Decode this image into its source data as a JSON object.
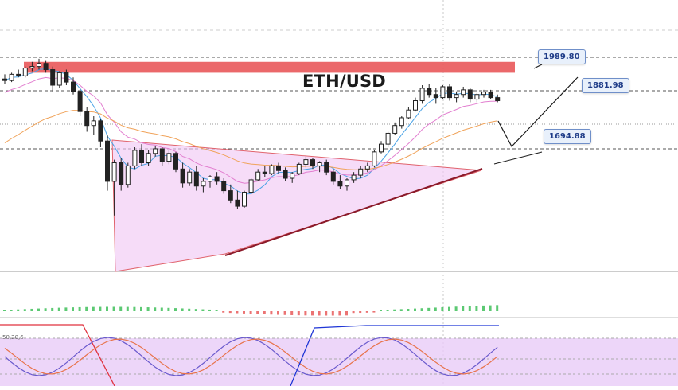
{
  "chart_data": {
    "type": "candlestick",
    "title": "ETH/USD",
    "symbol": "ETH/USD",
    "price_levels": [
      {
        "label": "1989.80",
        "value": 1989.8
      },
      {
        "label": "1881.98",
        "value": 1881.98
      },
      {
        "label": "1694.88",
        "value": 1694.88
      }
    ],
    "resistance_zone": [
      1940,
      1975
    ],
    "pattern": "triangle",
    "candles_ohlc": [
      [
        1920,
        1935,
        1905,
        1915
      ],
      [
        1915,
        1940,
        1910,
        1935
      ],
      [
        1935,
        1950,
        1925,
        1930
      ],
      [
        1930,
        1960,
        1925,
        1955
      ],
      [
        1955,
        1975,
        1945,
        1960
      ],
      [
        1960,
        1985,
        1950,
        1970
      ],
      [
        1970,
        1978,
        1940,
        1950
      ],
      [
        1950,
        1960,
        1880,
        1900
      ],
      [
        1900,
        1945,
        1890,
        1940
      ],
      [
        1940,
        1950,
        1900,
        1910
      ],
      [
        1910,
        1925,
        1870,
        1880
      ],
      [
        1880,
        1890,
        1800,
        1815
      ],
      [
        1815,
        1830,
        1750,
        1770
      ],
      [
        1770,
        1800,
        1740,
        1785
      ],
      [
        1785,
        1790,
        1700,
        1720
      ],
      [
        1720,
        1740,
        1560,
        1590
      ],
      [
        1590,
        1660,
        1480,
        1650
      ],
      [
        1650,
        1665,
        1560,
        1580
      ],
      [
        1580,
        1650,
        1570,
        1640
      ],
      [
        1640,
        1700,
        1630,
        1690
      ],
      [
        1690,
        1710,
        1640,
        1650
      ],
      [
        1650,
        1690,
        1640,
        1680
      ],
      [
        1680,
        1705,
        1670,
        1695
      ],
      [
        1695,
        1700,
        1640,
        1655
      ],
      [
        1655,
        1690,
        1645,
        1680
      ],
      [
        1680,
        1685,
        1620,
        1630
      ],
      [
        1630,
        1650,
        1570,
        1585
      ],
      [
        1585,
        1630,
        1575,
        1620
      ],
      [
        1620,
        1640,
        1560,
        1575
      ],
      [
        1575,
        1600,
        1555,
        1590
      ],
      [
        1590,
        1610,
        1570,
        1605
      ],
      [
        1605,
        1620,
        1580,
        1590
      ],
      [
        1590,
        1600,
        1550,
        1560
      ],
      [
        1560,
        1580,
        1520,
        1530
      ],
      [
        1530,
        1560,
        1500,
        1510
      ],
      [
        1510,
        1560,
        1505,
        1555
      ],
      [
        1555,
        1600,
        1550,
        1595
      ],
      [
        1595,
        1630,
        1590,
        1620
      ],
      [
        1620,
        1640,
        1605,
        1615
      ],
      [
        1615,
        1645,
        1610,
        1640
      ],
      [
        1640,
        1650,
        1615,
        1625
      ],
      [
        1625,
        1635,
        1590,
        1600
      ],
      [
        1600,
        1620,
        1585,
        1615
      ],
      [
        1615,
        1650,
        1610,
        1645
      ],
      [
        1645,
        1670,
        1635,
        1660
      ],
      [
        1660,
        1665,
        1630,
        1640
      ],
      [
        1640,
        1655,
        1620,
        1650
      ],
      [
        1650,
        1660,
        1610,
        1620
      ],
      [
        1620,
        1630,
        1580,
        1590
      ],
      [
        1590,
        1610,
        1565,
        1575
      ],
      [
        1575,
        1600,
        1560,
        1595
      ],
      [
        1595,
        1620,
        1585,
        1610
      ],
      [
        1610,
        1640,
        1600,
        1630
      ],
      [
        1630,
        1650,
        1620,
        1640
      ],
      [
        1640,
        1690,
        1635,
        1685
      ],
      [
        1685,
        1720,
        1680,
        1710
      ],
      [
        1710,
        1750,
        1700,
        1745
      ],
      [
        1745,
        1780,
        1740,
        1770
      ],
      [
        1770,
        1800,
        1760,
        1795
      ],
      [
        1795,
        1830,
        1790,
        1820
      ],
      [
        1820,
        1860,
        1815,
        1850
      ],
      [
        1850,
        1900,
        1840,
        1890
      ],
      [
        1890,
        1905,
        1860,
        1870
      ],
      [
        1870,
        1890,
        1840,
        1860
      ],
      [
        1860,
        1900,
        1855,
        1895
      ],
      [
        1895,
        1905,
        1850,
        1860
      ],
      [
        1860,
        1880,
        1845,
        1870
      ],
      [
        1870,
        1895,
        1860,
        1885
      ],
      [
        1885,
        1890,
        1845,
        1855
      ],
      [
        1855,
        1875,
        1845,
        1870
      ],
      [
        1870,
        1885,
        1860,
        1878
      ],
      [
        1878,
        1885,
        1855,
        1860
      ],
      [
        1860,
        1870,
        1845,
        1850
      ]
    ],
    "indicators": [
      "moving averages",
      "histogram",
      "stochastic 50,20,6"
    ],
    "stochastic_label": "50,20,6"
  }
}
